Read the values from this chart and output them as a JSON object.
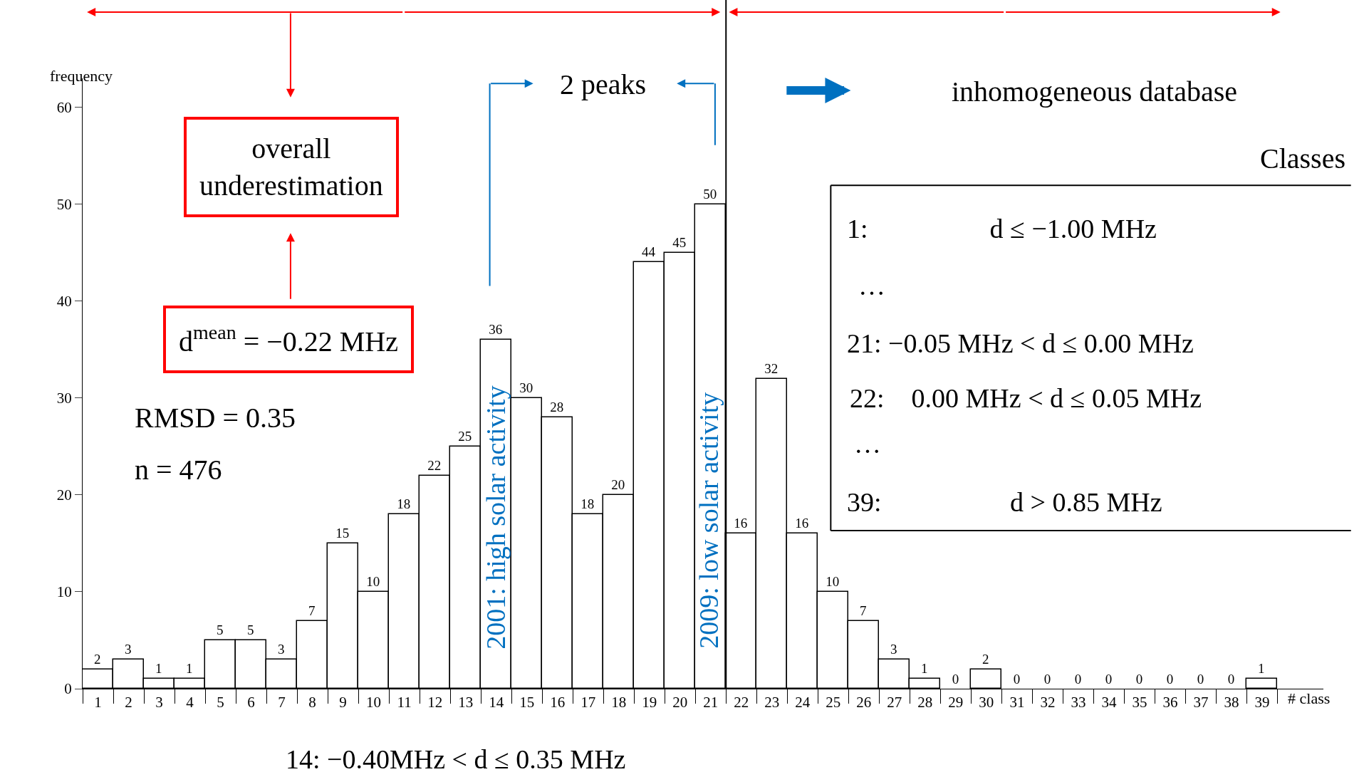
{
  "chart_data": {
    "type": "bar",
    "xlabel": "# class",
    "ylabel": "frequency",
    "x": [
      1,
      2,
      3,
      4,
      5,
      6,
      7,
      8,
      9,
      10,
      11,
      12,
      13,
      14,
      15,
      16,
      17,
      18,
      19,
      20,
      21,
      22,
      23,
      24,
      25,
      26,
      27,
      28,
      29,
      30,
      31,
      32,
      33,
      34,
      35,
      36,
      37,
      38,
      39
    ],
    "values": [
      2,
      3,
      1,
      1,
      5,
      5,
      3,
      7,
      15,
      10,
      18,
      22,
      25,
      36,
      30,
      28,
      18,
      20,
      44,
      45,
      50,
      16,
      32,
      16,
      10,
      7,
      3,
      1,
      0,
      2,
      0,
      0,
      0,
      0,
      0,
      0,
      0,
      0,
      1
    ],
    "color": "#ffffff",
    "data_labels": true,
    "xlim": [
      0.5,
      41
    ],
    "xticks": [
      1,
      2,
      3,
      4,
      5,
      6,
      7,
      8,
      9,
      10,
      11,
      12,
      13,
      14,
      15,
      16,
      17,
      18,
      19,
      20,
      21,
      22,
      23,
      24,
      25,
      26,
      27,
      28,
      29,
      30,
      31,
      32,
      33,
      34,
      35,
      36,
      37,
      38,
      39
    ],
    "ylim": [
      0,
      63
    ],
    "yticks": [
      0,
      10,
      20,
      30,
      40,
      50,
      60
    ],
    "ref_lines": [
      {
        "axis": "x",
        "value": 21.5,
        "color": "#000000"
      }
    ],
    "annotations": [
      "overall\nunderestimation",
      "d$^{mean}$ = −0.22 MHz",
      "RMSD = 0.35",
      "n = 476",
      "2 peaks",
      "inhomogeneous database",
      "Classes",
      "1:                  d ≤ −1.00 MHz",
      "…",
      "21: −0.05 MHz < d ≤ 0.00 MHz",
      "22:    0.00 MHz < d ≤ 0.05 MHz",
      "…",
      "39:                   d > 0.85 MHz",
      "14: −0.40MHz < d ≤ 0.35 MHz",
      "2001: high solar activity",
      "2009: low solar activity"
    ]
  }
}
